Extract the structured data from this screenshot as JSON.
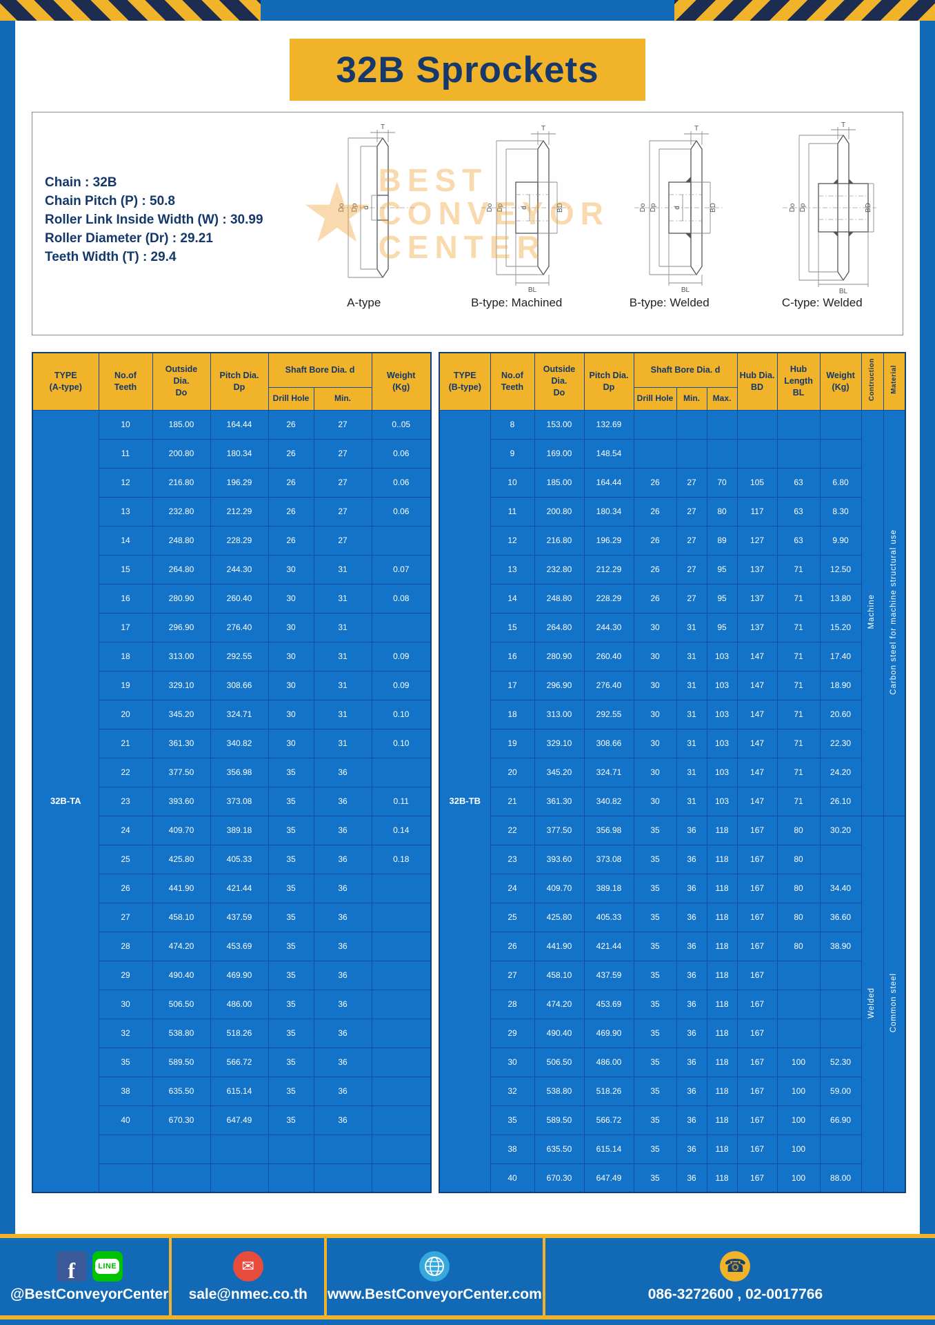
{
  "page": {
    "title": "32B Sprockets"
  },
  "specs": {
    "lines": [
      "Chain : 32B",
      "Chain Pitch (P) : 50.8",
      "Roller Link Inside Width (W) : 30.99",
      "Roller Diameter (Dr) : 29.21",
      "Teeth Width (T) : 29.4"
    ]
  },
  "diagrams": {
    "captions": [
      "A-type",
      "B-type: Machined",
      "B-type: Welded",
      "C-type: Welded"
    ],
    "dims": {
      "T": "T",
      "Do": "Do",
      "Dp": "Dp",
      "d": "d",
      "BD": "BD",
      "BL": "BL"
    }
  },
  "watermark": {
    "star": "★",
    "line1": "BEST",
    "line2": "CONVEYOR",
    "line3": "CENTER"
  },
  "table_a": {
    "headers": {
      "type": "TYPE\n(A-type)",
      "teeth": "No.of\nTeeth",
      "outside": "Outside\nDia.\nDo",
      "pitch": "Pitch Dia.\nDp",
      "shaft_group": "Shaft Bore Dia. d",
      "drill": "Drill Hole",
      "min": "Min.",
      "weight": "Weight\n(Kg)"
    },
    "type_value": "32B-TA",
    "rows": [
      [
        "10",
        "185.00",
        "164.44",
        "26",
        "27",
        "0..05"
      ],
      [
        "11",
        "200.80",
        "180.34",
        "26",
        "27",
        "0.06"
      ],
      [
        "12",
        "216.80",
        "196.29",
        "26",
        "27",
        "0.06"
      ],
      [
        "13",
        "232.80",
        "212.29",
        "26",
        "27",
        "0.06"
      ],
      [
        "14",
        "248.80",
        "228.29",
        "26",
        "27",
        ""
      ],
      [
        "15",
        "264.80",
        "244.30",
        "30",
        "31",
        "0.07"
      ],
      [
        "16",
        "280.90",
        "260.40",
        "30",
        "31",
        "0.08"
      ],
      [
        "17",
        "296.90",
        "276.40",
        "30",
        "31",
        ""
      ],
      [
        "18",
        "313.00",
        "292.55",
        "30",
        "31",
        "0.09"
      ],
      [
        "19",
        "329.10",
        "308.66",
        "30",
        "31",
        "0.09"
      ],
      [
        "20",
        "345.20",
        "324.71",
        "30",
        "31",
        "0.10"
      ],
      [
        "21",
        "361.30",
        "340.82",
        "30",
        "31",
        "0.10"
      ],
      [
        "22",
        "377.50",
        "356.98",
        "35",
        "36",
        ""
      ],
      [
        "23",
        "393.60",
        "373.08",
        "35",
        "36",
        "0.11"
      ],
      [
        "24",
        "409.70",
        "389.18",
        "35",
        "36",
        "0.14"
      ],
      [
        "25",
        "425.80",
        "405.33",
        "35",
        "36",
        "0.18"
      ],
      [
        "26",
        "441.90",
        "421.44",
        "35",
        "36",
        ""
      ],
      [
        "27",
        "458.10",
        "437.59",
        "35",
        "36",
        ""
      ],
      [
        "28",
        "474.20",
        "453.69",
        "35",
        "36",
        ""
      ],
      [
        "29",
        "490.40",
        "469.90",
        "35",
        "36",
        ""
      ],
      [
        "30",
        "506.50",
        "486.00",
        "35",
        "36",
        ""
      ],
      [
        "32",
        "538.80",
        "518.26",
        "35",
        "36",
        ""
      ],
      [
        "35",
        "589.50",
        "566.72",
        "35",
        "36",
        ""
      ],
      [
        "38",
        "635.50",
        "615.14",
        "35",
        "36",
        ""
      ],
      [
        "40",
        "670.30",
        "647.49",
        "35",
        "36",
        ""
      ],
      [
        "",
        "",
        "",
        "",
        "",
        ""
      ],
      [
        "",
        "",
        "",
        "",
        "",
        ""
      ]
    ]
  },
  "table_b": {
    "headers": {
      "type": "TYPE\n(B-type)",
      "teeth": "No.of\nTeeth",
      "outside": "Outside\nDia.\nDo",
      "pitch": "Pitch Dia.\nDp",
      "shaft_group": "Shaft Bore Dia. d",
      "drill": "Drill Hole",
      "min": "Min.",
      "max": "Max.",
      "hub_dia": "Hub Dia.\nBD",
      "hub_len": "Hub\nLength\nBL",
      "weight": "Weight\n(Kg)",
      "construction": "Contruction",
      "material": "Material"
    },
    "type_value": "32B-TB",
    "rows": [
      [
        "8",
        "153.00",
        "132.69",
        "",
        "",
        "",
        "",
        "",
        ""
      ],
      [
        "9",
        "169.00",
        "148.54",
        "",
        "",
        "",
        "",
        "",
        ""
      ],
      [
        "10",
        "185.00",
        "164.44",
        "26",
        "27",
        "70",
        "105",
        "63",
        "6.80"
      ],
      [
        "11",
        "200.80",
        "180.34",
        "26",
        "27",
        "80",
        "117",
        "63",
        "8.30"
      ],
      [
        "12",
        "216.80",
        "196.29",
        "26",
        "27",
        "89",
        "127",
        "63",
        "9.90"
      ],
      [
        "13",
        "232.80",
        "212.29",
        "26",
        "27",
        "95",
        "137",
        "71",
        "12.50"
      ],
      [
        "14",
        "248.80",
        "228.29",
        "26",
        "27",
        "95",
        "137",
        "71",
        "13.80"
      ],
      [
        "15",
        "264.80",
        "244.30",
        "30",
        "31",
        "95",
        "137",
        "71",
        "15.20"
      ],
      [
        "16",
        "280.90",
        "260.40",
        "30",
        "31",
        "103",
        "147",
        "71",
        "17.40"
      ],
      [
        "17",
        "296.90",
        "276.40",
        "30",
        "31",
        "103",
        "147",
        "71",
        "18.90"
      ],
      [
        "18",
        "313.00",
        "292.55",
        "30",
        "31",
        "103",
        "147",
        "71",
        "20.60"
      ],
      [
        "19",
        "329.10",
        "308.66",
        "30",
        "31",
        "103",
        "147",
        "71",
        "22.30"
      ],
      [
        "20",
        "345.20",
        "324.71",
        "30",
        "31",
        "103",
        "147",
        "71",
        "24.20"
      ],
      [
        "21",
        "361.30",
        "340.82",
        "30",
        "31",
        "103",
        "147",
        "71",
        "26.10"
      ],
      [
        "22",
        "377.50",
        "356.98",
        "35",
        "36",
        "118",
        "167",
        "80",
        "30.20"
      ],
      [
        "23",
        "393.60",
        "373.08",
        "35",
        "36",
        "118",
        "167",
        "80",
        ""
      ],
      [
        "24",
        "409.70",
        "389.18",
        "35",
        "36",
        "118",
        "167",
        "80",
        "34.40"
      ],
      [
        "25",
        "425.80",
        "405.33",
        "35",
        "36",
        "118",
        "167",
        "80",
        "36.60"
      ],
      [
        "26",
        "441.90",
        "421.44",
        "35",
        "36",
        "118",
        "167",
        "80",
        "38.90"
      ],
      [
        "27",
        "458.10",
        "437.59",
        "35",
        "36",
        "118",
        "167",
        "",
        ""
      ],
      [
        "28",
        "474.20",
        "453.69",
        "35",
        "36",
        "118",
        "167",
        "",
        ""
      ],
      [
        "29",
        "490.40",
        "469.90",
        "35",
        "36",
        "118",
        "167",
        "",
        ""
      ],
      [
        "30",
        "506.50",
        "486.00",
        "35",
        "36",
        "118",
        "167",
        "100",
        "52.30"
      ],
      [
        "32",
        "538.80",
        "518.26",
        "35",
        "36",
        "118",
        "167",
        "100",
        "59.00"
      ],
      [
        "35",
        "589.50",
        "566.72",
        "35",
        "36",
        "118",
        "167",
        "100",
        "66.90"
      ],
      [
        "38",
        "635.50",
        "615.14",
        "35",
        "36",
        "118",
        "167",
        "100",
        ""
      ],
      [
        "40",
        "670.30",
        "647.49",
        "35",
        "36",
        "118",
        "167",
        "100",
        "88.00"
      ]
    ],
    "construction_groups": [
      {
        "label": "Machine",
        "rows": 14
      },
      {
        "label": "Welded",
        "rows": 13
      }
    ],
    "material_groups": [
      {
        "label": "Carbon steel for machine structural use",
        "rows": 14
      },
      {
        "label": "Common steel",
        "rows": 13
      }
    ]
  },
  "footer": {
    "icons": {
      "facebook": "f",
      "line": "LINE",
      "email": "✉",
      "phone": "☎"
    },
    "sections": [
      {
        "text": "@BestConveyorCenter"
      },
      {
        "text": "sale@nmec.co.th"
      },
      {
        "text": "www.BestConveyorCenter.com"
      },
      {
        "text": "086-3272600 , 02-0017766"
      }
    ]
  },
  "colors": {
    "border_blue": "#1269b5",
    "accent_yellow": "#f0b32a",
    "table_blue": "#1273c8",
    "navy_text": "#14386b",
    "hazard_navy": "#1d2d52"
  }
}
